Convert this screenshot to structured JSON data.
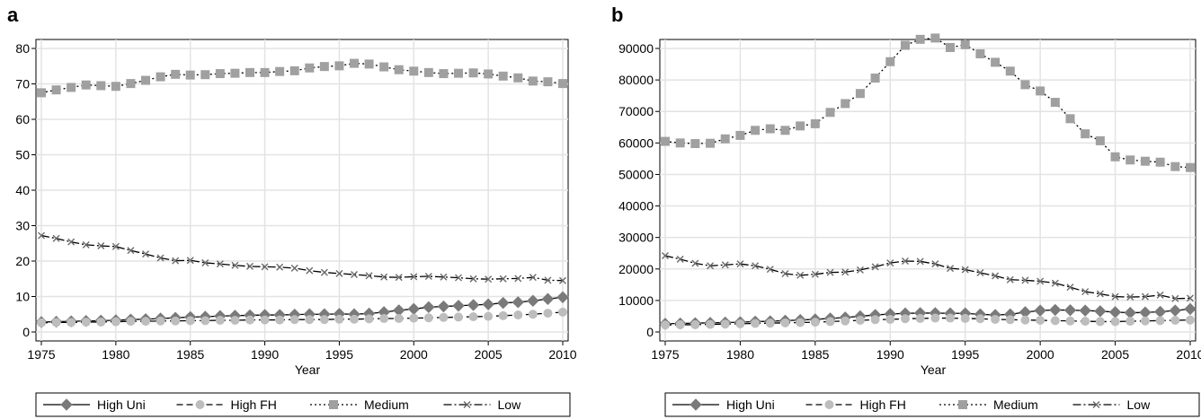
{
  "chart_data": [
    {
      "panel_label": "a",
      "type": "line",
      "xlabel": "Year",
      "ylabel": "",
      "xlim": [
        1975,
        2010
      ],
      "ylim": [
        0,
        80
      ],
      "xticks": [
        1975,
        1980,
        1985,
        1990,
        1995,
        2000,
        2005,
        2010
      ],
      "yticks": [
        0,
        10,
        20,
        30,
        40,
        50,
        60,
        70,
        80
      ],
      "grid": true,
      "legend_position": "bottom",
      "x": [
        1975,
        1976,
        1977,
        1978,
        1979,
        1980,
        1981,
        1982,
        1983,
        1984,
        1985,
        1986,
        1987,
        1988,
        1989,
        1990,
        1991,
        1992,
        1993,
        1994,
        1995,
        1996,
        1997,
        1998,
        1999,
        2000,
        2001,
        2002,
        2003,
        2004,
        2005,
        2006,
        2007,
        2008,
        2009,
        2010
      ],
      "series": [
        {
          "name": "High Uni",
          "marker": "diamond",
          "dash": "solid",
          "color": "#7a7a7a",
          "values": [
            2.8,
            2.9,
            3.0,
            3.1,
            3.2,
            3.3,
            3.5,
            3.6,
            3.8,
            4.0,
            4.2,
            4.3,
            4.5,
            4.6,
            4.7,
            4.8,
            4.8,
            4.9,
            5.0,
            5.0,
            5.1,
            5.0,
            5.2,
            5.6,
            6.1,
            6.5,
            7.0,
            7.2,
            7.4,
            7.6,
            7.8,
            8.2,
            8.4,
            8.8,
            9.3,
            9.8
          ]
        },
        {
          "name": "High FH",
          "marker": "circle",
          "dash": "dashed",
          "color": "#bdbdbd",
          "values": [
            2.6,
            2.7,
            2.7,
            2.8,
            2.8,
            2.9,
            3.0,
            3.0,
            3.1,
            3.1,
            3.2,
            3.2,
            3.3,
            3.3,
            3.4,
            3.4,
            3.4,
            3.5,
            3.5,
            3.5,
            3.6,
            3.6,
            3.7,
            3.8,
            3.8,
            3.9,
            4.0,
            4.1,
            4.2,
            4.3,
            4.4,
            4.6,
            4.8,
            5.0,
            5.3,
            5.6
          ]
        },
        {
          "name": "Medium",
          "marker": "square",
          "dash": "dotted",
          "color": "#a0a0a0",
          "values": [
            67.5,
            68.3,
            69.0,
            69.7,
            69.5,
            69.3,
            70.1,
            71.0,
            72.0,
            72.7,
            72.5,
            72.6,
            72.9,
            73.0,
            73.2,
            73.2,
            73.5,
            73.7,
            74.5,
            74.9,
            75.1,
            75.8,
            75.6,
            74.8,
            74.0,
            73.6,
            73.2,
            72.9,
            73.0,
            73.1,
            72.8,
            72.2,
            71.7,
            70.8,
            70.6,
            70.1
          ]
        },
        {
          "name": "Low",
          "marker": "x",
          "dash": "dashdot",
          "color": "#6a6a6a",
          "values": [
            27.2,
            26.4,
            25.4,
            24.6,
            24.3,
            24.1,
            23.0,
            22.0,
            20.9,
            20.1,
            20.2,
            19.5,
            19.2,
            18.8,
            18.5,
            18.4,
            18.3,
            18.0,
            17.3,
            16.8,
            16.5,
            16.2,
            15.9,
            15.5,
            15.4,
            15.6,
            15.7,
            15.5,
            15.3,
            15.0,
            14.9,
            15.0,
            15.1,
            15.4,
            14.6,
            14.5
          ]
        }
      ]
    },
    {
      "panel_label": "b",
      "type": "line",
      "xlabel": "Year",
      "ylabel": "",
      "xlim": [
        1975,
        2010
      ],
      "ylim": [
        0,
        90000
      ],
      "xticks": [
        1975,
        1980,
        1985,
        1990,
        1995,
        2000,
        2005,
        2010
      ],
      "yticks": [
        0,
        10000,
        20000,
        30000,
        40000,
        50000,
        60000,
        70000,
        80000,
        90000
      ],
      "grid": true,
      "legend_position": "bottom",
      "x": [
        1975,
        1976,
        1977,
        1978,
        1979,
        1980,
        1981,
        1982,
        1983,
        1984,
        1985,
        1986,
        1987,
        1988,
        1989,
        1990,
        1991,
        1992,
        1993,
        1994,
        1995,
        1996,
        1997,
        1998,
        1999,
        2000,
        2001,
        2002,
        2003,
        2004,
        2005,
        2006,
        2007,
        2008,
        2009,
        2010
      ],
      "series": [
        {
          "name": "High Uni",
          "marker": "diamond",
          "dash": "solid",
          "color": "#7a7a7a",
          "values": [
            2600,
            2700,
            2800,
            2900,
            3000,
            3100,
            3300,
            3400,
            3600,
            3800,
            4000,
            4300,
            4600,
            5000,
            5400,
            5700,
            5900,
            6000,
            6000,
            5900,
            5900,
            5600,
            5400,
            5600,
            6300,
            6800,
            7000,
            6900,
            6800,
            6600,
            6300,
            6100,
            6200,
            6400,
            6800,
            7300
          ]
        },
        {
          "name": "High FH",
          "marker": "circle",
          "dash": "dashed",
          "color": "#bdbdbd",
          "values": [
            2200,
            2300,
            2300,
            2400,
            2500,
            2600,
            2700,
            2800,
            2900,
            3000,
            3100,
            3300,
            3500,
            3700,
            3900,
            4000,
            4200,
            4300,
            4400,
            4400,
            4300,
            4200,
            4000,
            3900,
            3800,
            3700,
            3600,
            3500,
            3400,
            3300,
            3300,
            3400,
            3500,
            3600,
            3700,
            3800
          ]
        },
        {
          "name": "Medium",
          "marker": "square",
          "dash": "dotted",
          "color": "#a0a0a0",
          "values": [
            60500,
            60000,
            59800,
            59900,
            61300,
            62400,
            64000,
            64500,
            64000,
            65400,
            66100,
            69700,
            72500,
            75700,
            80600,
            85800,
            91000,
            92900,
            93300,
            90300,
            91200,
            88300,
            85600,
            82800,
            78500,
            76500,
            72900,
            67700,
            62900,
            60700,
            55600,
            54600,
            54200,
            53900,
            52500,
            52200
          ]
        },
        {
          "name": "Low",
          "marker": "x",
          "dash": "dashdot",
          "color": "#6a6a6a",
          "values": [
            24200,
            23100,
            21800,
            21000,
            21300,
            21600,
            21000,
            19900,
            18500,
            18000,
            18300,
            18900,
            19000,
            19700,
            20700,
            21900,
            22500,
            22400,
            21600,
            20200,
            19800,
            18800,
            17800,
            16600,
            16400,
            16100,
            15500,
            14200,
            12800,
            12100,
            11200,
            11100,
            11200,
            11700,
            10600,
            10700
          ]
        }
      ]
    }
  ]
}
